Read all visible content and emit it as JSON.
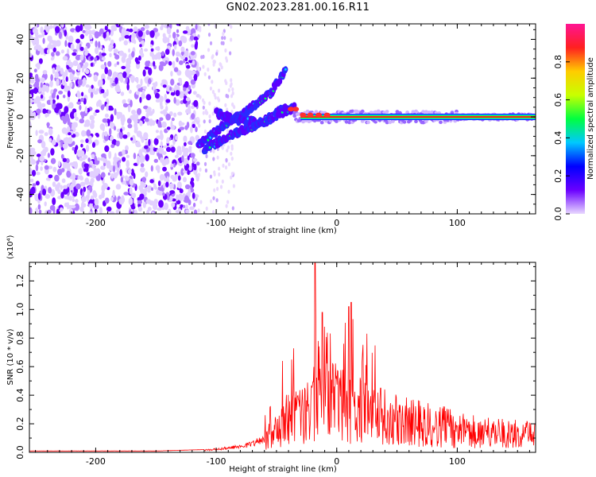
{
  "title": "GN02.2023.281.00.16.R11",
  "chart_data": [
    {
      "type": "heatmap",
      "xlabel": "Height of straight line (km)",
      "ylabel": "Frequency (Hz)",
      "xlim": [
        -255,
        165
      ],
      "ylim": [
        -50,
        48
      ],
      "x_ticks": [
        "-200",
        "-100",
        "0",
        "100"
      ],
      "x_tick_values": [
        -200,
        -100,
        0,
        100
      ],
      "y_ticks": [
        "-40",
        "-20",
        "0",
        "20",
        "40"
      ],
      "y_tick_values": [
        -40,
        -20,
        0,
        20,
        40
      ],
      "colorbar": {
        "label": "Normalized spectral amplitude",
        "range": [
          0,
          1
        ],
        "ticks": [
          "0.0",
          "0.2",
          "0.4",
          "0.6",
          "0.8"
        ],
        "tick_values": [
          0.0,
          0.2,
          0.4,
          0.6,
          0.8
        ],
        "colors": [
          "#e8d8ff",
          "#6a00ff",
          "#0000ff",
          "#00c8ff",
          "#00ff40",
          "#c8ff00",
          "#ffcc00",
          "#ff2020",
          "#ff1493"
        ]
      },
      "features": {
        "noise_region_x": [
          -255,
          -115
        ],
        "scattered_region_x": [
          -115,
          -85
        ],
        "carrier_start_x": -35,
        "carrier_end_x": 165,
        "carrier_frequency": 0,
        "branches": [
          {
            "x": [
              -115,
              -95,
              -75,
              -55,
              -42
            ],
            "y": [
              -15,
              -5,
              3,
              12,
              25
            ]
          },
          {
            "x": [
              -100,
              -80,
              -60,
              -45,
              -35
            ],
            "y": [
              2,
              -2,
              -3,
              2,
              5
            ]
          },
          {
            "x": [
              -110,
              -90,
              -70,
              -55,
              -42
            ],
            "y": [
              -17,
              -10,
              -5,
              0,
              5
            ]
          }
        ]
      }
    },
    {
      "type": "line",
      "xlabel": "Height of straight line (km)",
      "ylabel": "SNR (10 * v/v)",
      "scale_note": "(x10⁴)",
      "xlim": [
        -255,
        165
      ],
      "ylim": [
        0,
        1.33
      ],
      "x_ticks": [
        "-200",
        "-100",
        "0",
        "100"
      ],
      "x_tick_values": [
        -200,
        -100,
        0,
        100
      ],
      "y_ticks": [
        "0.0",
        "0.2",
        "0.4",
        "0.6",
        "0.8",
        "1.0",
        "1.2"
      ],
      "y_tick_values": [
        0.0,
        0.2,
        0.4,
        0.6,
        0.8,
        1.0,
        1.2
      ],
      "series": [
        {
          "color": "#ff0000",
          "envelope_x": [
            -255,
            -150,
            -110,
            -100,
            -90,
            -70,
            -60,
            -50,
            -45,
            -40,
            -35,
            -30,
            -25,
            -20,
            -18,
            -15,
            -10,
            -5,
            0,
            5,
            10,
            15,
            20,
            25,
            30,
            40,
            50,
            60,
            70,
            80,
            90,
            100,
            110,
            120,
            130,
            140,
            150,
            165
          ],
          "envelope_y": [
            0.01,
            0.01,
            0.02,
            0.03,
            0.04,
            0.08,
            0.15,
            0.3,
            0.38,
            0.42,
            0.44,
            0.48,
            0.5,
            0.55,
            0.7,
            0.58,
            0.62,
            0.64,
            0.62,
            0.6,
            0.58,
            0.54,
            0.52,
            0.5,
            0.47,
            0.44,
            0.41,
            0.38,
            0.36,
            0.34,
            0.32,
            0.29,
            0.27,
            0.26,
            0.25,
            0.24,
            0.23,
            0.22
          ],
          "peaks_x": [
            -18,
            -12,
            10,
            12,
            25,
            -45
          ],
          "peaks_y": [
            1.33,
            0.98,
            1.02,
            1.05,
            0.83,
            0.64
          ]
        }
      ]
    }
  ]
}
